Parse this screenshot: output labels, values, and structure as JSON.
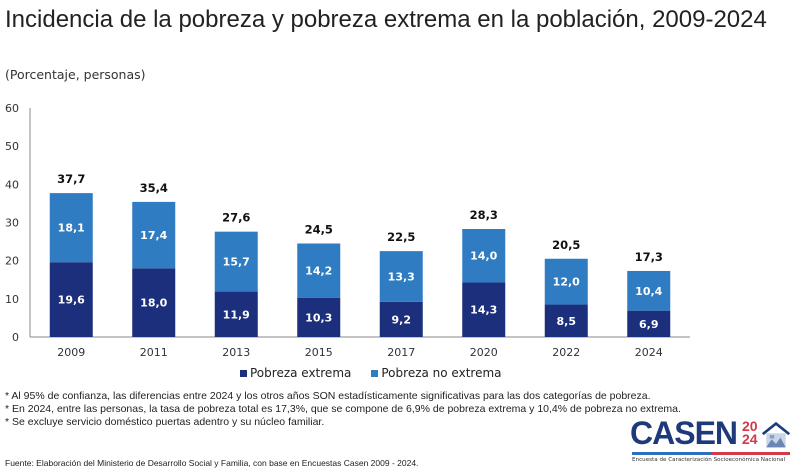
{
  "title": "Incidencia de la pobreza y pobreza extrema en la población, 2009-2024",
  "subtitle": "(Porcentaje, personas)",
  "chart_data": {
    "type": "bar",
    "stacked": true,
    "title": "Incidencia de la pobreza y pobreza extrema en la población, 2009-2024",
    "subtitle": "(Porcentaje, personas)",
    "categories": [
      "2009",
      "2011",
      "2013",
      "2015",
      "2017",
      "2020",
      "2022",
      "2024"
    ],
    "series": [
      {
        "name": "Pobreza extrema",
        "color": "#1b2f7c",
        "values": [
          19.6,
          18.0,
          11.9,
          10.3,
          9.2,
          14.3,
          8.5,
          6.9
        ],
        "labels": [
          "19,6",
          "18,0",
          "11,9",
          "10,3",
          "9,2",
          "14,3",
          "8,5",
          "6,9"
        ]
      },
      {
        "name": "Pobreza no extrema",
        "color": "#2f7cc2",
        "values": [
          18.1,
          17.4,
          15.7,
          14.2,
          13.3,
          14.0,
          12.0,
          10.4
        ],
        "labels": [
          "18,1",
          "17,4",
          "15,7",
          "14,2",
          "13,3",
          "14,0",
          "12,0",
          "10,4"
        ]
      }
    ],
    "totals": [
      "37,7",
      "35,4",
      "27,6",
      "24,5",
      "22,5",
      "28,3",
      "20,5",
      "17,3"
    ],
    "ylim": [
      0,
      60
    ],
    "yticks": [
      "0",
      "10",
      "20",
      "30",
      "40",
      "50",
      "60"
    ],
    "grid": false,
    "legend": "bottom"
  },
  "notes": [
    "* Al 95% de confianza, las diferencias entre 2024 y los otros años SON estadísticamente significativas para las dos categorías de pobreza.",
    "* En 2024, entre las personas, la tasa de pobreza total es 17,3%, que se compone de 6,9% de pobreza extrema y 10,4% de pobreza no extrema.",
    "* Se excluye servicio doméstico puertas adentro y su núcleo familiar."
  ],
  "source": "Fuente: Elaboración del Ministerio de Desarrollo Social y Familia, con base en Encuestas Casen 2009 - 2024.",
  "logo": {
    "word": "CASEN",
    "year_top": "20",
    "year_bottom": "24",
    "tagline": "Encuesta de Caracterización Socioeconómica Nacional"
  }
}
